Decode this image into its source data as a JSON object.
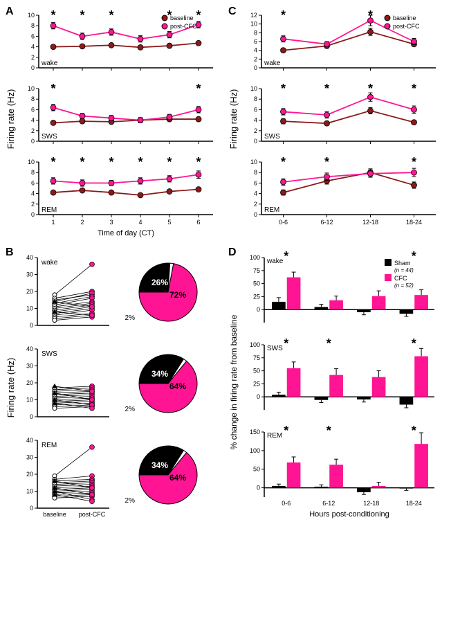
{
  "colors": {
    "baseline": "#8b1a1a",
    "postCFC": "#ff1493",
    "black": "#000000",
    "white": "#ffffff",
    "cfc_bar": "#ff1493",
    "sham_bar": "#000000"
  },
  "panelA": {
    "xlabel": "Time of day (CT)",
    "ylabel": "Firing rate (Hz)",
    "xticks": [
      1,
      2,
      3,
      4,
      5,
      6
    ],
    "charts": [
      {
        "state": "wake",
        "ylim": [
          0,
          10
        ],
        "yticks": [
          0,
          2,
          4,
          6,
          8,
          10
        ],
        "baseline": [
          4.0,
          4.1,
          4.3,
          3.9,
          4.2,
          4.7
        ],
        "post": [
          8.0,
          6.0,
          6.8,
          5.5,
          6.3,
          8.2
        ],
        "base_err": [
          0.3,
          0.3,
          0.3,
          0.3,
          0.3,
          0.3
        ],
        "post_err": [
          0.6,
          0.6,
          0.6,
          0.6,
          0.6,
          0.6
        ],
        "sig": [
          1,
          1,
          1,
          0,
          1,
          1
        ],
        "legend": true
      },
      {
        "state": "SWS",
        "ylim": [
          0,
          10
        ],
        "yticks": [
          0,
          2,
          4,
          6,
          8,
          10
        ],
        "baseline": [
          3.5,
          3.8,
          3.7,
          4.0,
          4.2,
          4.2
        ],
        "post": [
          6.4,
          4.8,
          4.4,
          4.0,
          4.6,
          6.0
        ],
        "base_err": [
          0.3,
          0.3,
          0.3,
          0.3,
          0.3,
          0.3
        ],
        "post_err": [
          0.6,
          0.5,
          0.5,
          0.5,
          0.5,
          0.6
        ],
        "sig": [
          1,
          0,
          0,
          0,
          0,
          1
        ],
        "legend": false
      },
      {
        "state": "REM",
        "ylim": [
          0,
          10
        ],
        "yticks": [
          0,
          2,
          4,
          6,
          8,
          10
        ],
        "baseline": [
          4.2,
          4.6,
          4.2,
          3.7,
          4.4,
          4.8
        ],
        "post": [
          6.4,
          6.0,
          6.0,
          6.4,
          6.8,
          7.6
        ],
        "base_err": [
          0.3,
          0.3,
          0.3,
          0.3,
          0.3,
          0.3
        ],
        "post_err": [
          0.6,
          0.6,
          0.5,
          0.6,
          0.6,
          0.7
        ],
        "sig": [
          1,
          1,
          1,
          1,
          1,
          1
        ],
        "legend": false
      }
    ]
  },
  "panelC": {
    "xlabel": "",
    "ylabel": "Firing rate (Hz)",
    "xticks": [
      "0-6",
      "6-12",
      "12-18",
      "18-24"
    ],
    "charts": [
      {
        "state": "wake",
        "ylim": [
          0,
          12
        ],
        "yticks": [
          0,
          2,
          4,
          6,
          8,
          10,
          12
        ],
        "baseline": [
          4.0,
          5.0,
          8.2,
          5.4
        ],
        "post": [
          6.6,
          5.4,
          10.8,
          6.0
        ],
        "base_err": [
          0.5,
          0.5,
          0.8,
          0.5
        ],
        "post_err": [
          0.7,
          0.6,
          1.2,
          0.7
        ],
        "sig": [
          1,
          0,
          1,
          0
        ],
        "legend": true
      },
      {
        "state": "SWS",
        "ylim": [
          0,
          10
        ],
        "yticks": [
          0,
          2,
          4,
          6,
          8,
          10
        ],
        "baseline": [
          3.8,
          3.4,
          5.8,
          3.6
        ],
        "post": [
          5.6,
          5.0,
          8.4,
          6.0
        ],
        "base_err": [
          0.5,
          0.4,
          0.6,
          0.4
        ],
        "post_err": [
          0.6,
          0.6,
          0.8,
          0.7
        ],
        "sig": [
          1,
          1,
          1,
          1
        ],
        "legend": false
      },
      {
        "state": "REM",
        "ylim": [
          0,
          10
        ],
        "yticks": [
          0,
          2,
          4,
          6,
          8,
          10
        ],
        "baseline": [
          4.2,
          6.4,
          8.0,
          5.6
        ],
        "post": [
          6.2,
          7.2,
          7.8,
          8.0
        ],
        "base_err": [
          0.5,
          0.6,
          0.7,
          0.6
        ],
        "post_err": [
          0.6,
          0.7,
          0.7,
          0.8
        ],
        "sig": [
          1,
          1,
          0,
          1
        ],
        "legend": false
      }
    ]
  },
  "panelB": {
    "ylabel": "Firing rate (Hz)",
    "xlabels": [
      "baseline",
      "post-CFC"
    ],
    "charts": [
      {
        "state": "wake",
        "ylim": [
          0,
          40
        ],
        "yticks": [
          0,
          10,
          20,
          30,
          40
        ],
        "pairs": [
          [
            18,
            36
          ],
          [
            16,
            20
          ],
          [
            15,
            18
          ],
          [
            14,
            19
          ],
          [
            13,
            17
          ],
          [
            12,
            16
          ],
          [
            11,
            14
          ],
          [
            10,
            13
          ],
          [
            9,
            12
          ],
          [
            8,
            11
          ],
          [
            7,
            10
          ],
          [
            6,
            9
          ],
          [
            5,
            7
          ],
          [
            4,
            6
          ],
          [
            3,
            5
          ],
          [
            14,
            11
          ],
          [
            8,
            6
          ]
        ],
        "pie": {
          "inc": 72,
          "dec": 26,
          "nc": 2
        }
      },
      {
        "state": "SWS",
        "ylim": [
          0,
          40
        ],
        "yticks": [
          0,
          10,
          20,
          30,
          40
        ],
        "pairs": [
          [
            17,
            18
          ],
          [
            16,
            17
          ],
          [
            15,
            16
          ],
          [
            14,
            15
          ],
          [
            13,
            14
          ],
          [
            12,
            13
          ],
          [
            11,
            12
          ],
          [
            10,
            11
          ],
          [
            9,
            10
          ],
          [
            8,
            9
          ],
          [
            7,
            8
          ],
          [
            6,
            7
          ],
          [
            5,
            6
          ],
          [
            18,
            15
          ],
          [
            14,
            10
          ],
          [
            10,
            7
          ],
          [
            8,
            5
          ]
        ],
        "pie": {
          "inc": 64,
          "dec": 34,
          "nc": 2
        }
      },
      {
        "state": "REM",
        "ylim": [
          0,
          40
        ],
        "yticks": [
          0,
          10,
          20,
          30,
          40
        ],
        "pairs": [
          [
            19,
            36
          ],
          [
            17,
            19
          ],
          [
            16,
            17
          ],
          [
            15,
            16
          ],
          [
            14,
            15
          ],
          [
            13,
            14
          ],
          [
            12,
            13
          ],
          [
            11,
            12
          ],
          [
            10,
            11
          ],
          [
            9,
            10
          ],
          [
            8,
            9
          ],
          [
            7,
            8
          ],
          [
            6,
            7
          ],
          [
            16,
            12
          ],
          [
            12,
            8
          ],
          [
            10,
            5
          ],
          [
            8,
            4
          ]
        ],
        "pie": {
          "inc": 64,
          "dec": 34,
          "nc": 2
        }
      }
    ]
  },
  "panelD": {
    "ylabel": "% change in firing rate from baseline",
    "xlabel": "Hours post-conditioning",
    "xticks": [
      "0-6",
      "6-12",
      "12-18",
      "18-24"
    ],
    "legend": {
      "sham": "Sham",
      "sham_n": "(n = 44)",
      "cfc": "CFC",
      "cfc_n": "(n = 52)"
    },
    "charts": [
      {
        "state": "wake",
        "ylim": [
          -25,
          100
        ],
        "yticks": [
          0,
          25,
          50,
          75,
          100
        ],
        "sham": [
          15,
          5,
          -5,
          -8
        ],
        "sham_err": [
          8,
          5,
          5,
          5
        ],
        "cfc": [
          62,
          18,
          26,
          28
        ],
        "cfc_err": [
          10,
          8,
          10,
          10
        ],
        "sig": [
          1,
          0,
          0,
          1
        ]
      },
      {
        "state": "SWS",
        "ylim": [
          -25,
          100
        ],
        "yticks": [
          0,
          25,
          50,
          75,
          100
        ],
        "sham": [
          4,
          -6,
          -5,
          -15
        ],
        "sham_err": [
          5,
          5,
          5,
          6
        ],
        "cfc": [
          55,
          42,
          38,
          78
        ],
        "cfc_err": [
          12,
          12,
          12,
          15
        ],
        "sig": [
          1,
          1,
          0,
          1
        ]
      },
      {
        "state": "REM",
        "ylim": [
          -25,
          150
        ],
        "yticks": [
          0,
          50,
          100,
          150
        ],
        "sham": [
          5,
          3,
          -12,
          -2
        ],
        "sham_err": [
          5,
          5,
          6,
          5
        ],
        "cfc": [
          68,
          62,
          5,
          118
        ],
        "cfc_err": [
          15,
          15,
          10,
          30
        ],
        "sig": [
          1,
          1,
          0,
          1
        ]
      }
    ]
  }
}
